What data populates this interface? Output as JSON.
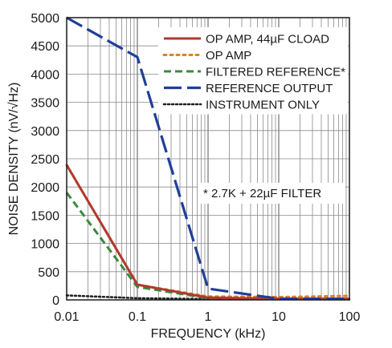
{
  "chart_data": {
    "type": "line",
    "xlabel": "FREQUENCY (kHz)",
    "ylabel": "NOISE DENSITY (nV/√Hz)",
    "xscale": "log",
    "xlim": [
      0.01,
      100
    ],
    "ylim": [
      0,
      5000
    ],
    "grid": true,
    "legend_position": "top-right",
    "x_ticks": [
      0.01,
      0.1,
      1,
      10,
      100
    ],
    "x_tick_labels": [
      "0.01",
      "0.1",
      "1",
      "10",
      "100"
    ],
    "y_ticks": [
      0,
      500,
      1000,
      1500,
      2000,
      2500,
      3000,
      3500,
      4000,
      4500,
      5000
    ],
    "y_tick_labels": [
      "0",
      "500",
      "1000",
      "1500",
      "2000",
      "2500",
      "3000",
      "3500",
      "4000",
      "4500",
      "5000"
    ],
    "annotation": "* 2.7K + 22µF FILTER",
    "series": [
      {
        "name": "OP AMP, 44µF CLOAD",
        "color": "#b03a2e",
        "dash": "solid",
        "x": [
          0.01,
          0.1,
          1,
          10,
          100
        ],
        "y": [
          2390,
          270,
          40,
          20,
          20
        ]
      },
      {
        "name": "OP AMP",
        "color": "#d9822b",
        "dash": "dot",
        "x": [
          0.01,
          0.1,
          1,
          10,
          100
        ],
        "y": [
          2390,
          270,
          60,
          50,
          70
        ]
      },
      {
        "name": "FILTERED REFERENCE*",
        "color": "#3a8a3e",
        "dash": "dash",
        "x": [
          0.01,
          0.1,
          1,
          10,
          100
        ],
        "y": [
          1900,
          230,
          30,
          20,
          20
        ]
      },
      {
        "name": "REFERENCE OUTPUT",
        "color": "#1f3f99",
        "dash": "longdash",
        "x": [
          0.01,
          0.1,
          1,
          10,
          100
        ],
        "y": [
          5000,
          4300,
          200,
          20,
          20
        ]
      },
      {
        "name": "INSTRUMENT ONLY",
        "color": "#222222",
        "dash": "densedot",
        "x": [
          0.01,
          0.1,
          1,
          10,
          100
        ],
        "y": [
          80,
          30,
          15,
          10,
          10
        ]
      }
    ]
  }
}
